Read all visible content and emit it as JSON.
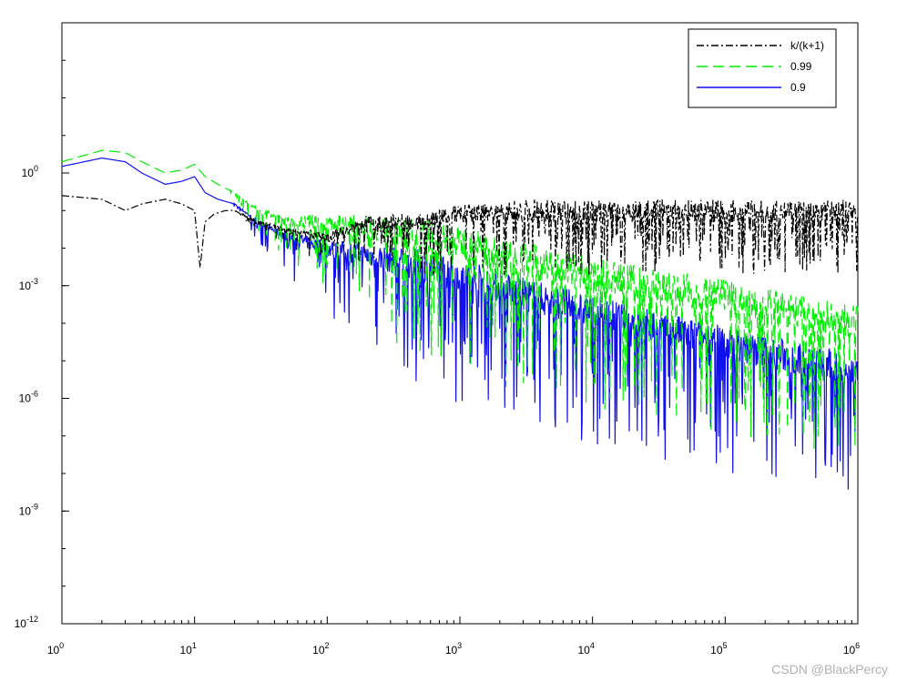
{
  "chart_data": {
    "type": "line",
    "title": "",
    "xlabel": "",
    "ylabel": "",
    "x_scale": "log",
    "y_scale": "log",
    "xlim": [
      1,
      1000000
    ],
    "ylim": [
      1e-12,
      10000
    ],
    "x_ticks": [
      {
        "base": "10",
        "exp": "0",
        "value": 1
      },
      {
        "base": "10",
        "exp": "1",
        "value": 10
      },
      {
        "base": "10",
        "exp": "2",
        "value": 100
      },
      {
        "base": "10",
        "exp": "3",
        "value": 1000
      },
      {
        "base": "10",
        "exp": "4",
        "value": 10000
      },
      {
        "base": "10",
        "exp": "5",
        "value": 100000
      },
      {
        "base": "10",
        "exp": "6",
        "value": 1000000
      }
    ],
    "y_ticks": [
      {
        "base": "10",
        "exp": "0",
        "value": 1
      },
      {
        "base": "10",
        "exp": "-3",
        "value": 0.001
      },
      {
        "base": "10",
        "exp": "-6",
        "value": 1e-06
      },
      {
        "base": "10",
        "exp": "-9",
        "value": 1e-09
      },
      {
        "base": "10",
        "exp": "-12",
        "value": 1e-12
      }
    ],
    "grid": false,
    "legend_position": "top-right",
    "series": [
      {
        "name": "k/(k+1)",
        "color": "#000000",
        "dash": "dash-dot",
        "x": [
          1,
          2,
          3,
          4,
          6,
          8,
          10,
          11,
          12,
          14,
          17,
          20,
          30,
          50,
          100,
          200,
          500,
          1000,
          3000,
          10000,
          100000,
          1000000
        ],
        "y": [
          0.25,
          0.2,
          0.1,
          0.15,
          0.2,
          0.15,
          0.1,
          0.003,
          0.05,
          0.08,
          0.1,
          0.1,
          0.05,
          0.03,
          0.02,
          0.05,
          0.05,
          0.08,
          0.1,
          0.1,
          0.1,
          0.1
        ]
      },
      {
        "name": "0.99",
        "color": "#00ee00",
        "dash": "dashed",
        "x": [
          1,
          2,
          3,
          4,
          6,
          8,
          10,
          12,
          15,
          20,
          30,
          50,
          100,
          300,
          1000,
          3000,
          10000,
          100000,
          1000000
        ],
        "y": [
          2,
          4,
          3.5,
          2,
          1,
          1.2,
          1.7,
          0.8,
          0.5,
          0.3,
          0.1,
          0.05,
          0.05,
          0.03,
          0.015,
          0.005,
          0.002,
          0.0005,
          0.0001
        ]
      },
      {
        "name": "0.9",
        "color": "#1010ee",
        "dash": "solid",
        "x": [
          1,
          2,
          3,
          4,
          6,
          8,
          10,
          12,
          15,
          20,
          30,
          50,
          100,
          300,
          1000,
          3000,
          10000,
          100000,
          1000000
        ],
        "y": [
          1.5,
          2.5,
          2,
          1,
          0.5,
          0.6,
          0.8,
          0.3,
          0.2,
          0.15,
          0.05,
          0.02,
          0.01,
          0.005,
          0.002,
          0.0006,
          0.0002,
          3e-05,
          5e-06
        ]
      }
    ]
  },
  "watermark": "CSDN @BlackPercy"
}
